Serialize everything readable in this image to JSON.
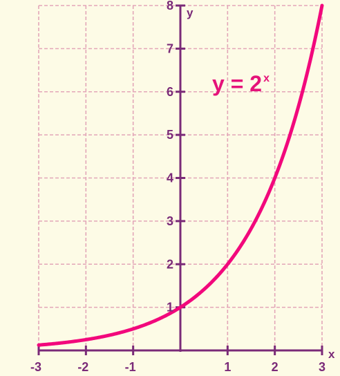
{
  "chart_data": {
    "type": "line",
    "title": "",
    "xlabel": "x",
    "ylabel": "y",
    "xlim": [
      -3,
      3
    ],
    "ylim": [
      0,
      8
    ],
    "grid": true,
    "x_ticks": [
      "-3",
      "-2",
      "-1",
      "1",
      "2",
      "3"
    ],
    "y_ticks": [
      "1",
      "2",
      "3",
      "4",
      "5",
      "6",
      "7",
      "8"
    ],
    "series": [
      {
        "name": "y = 2^x",
        "x": [
          -3,
          -2.5,
          -2,
          -1.5,
          -1,
          -0.5,
          0,
          0.5,
          1,
          1.5,
          2,
          2.5,
          3
        ],
        "y": [
          0.125,
          0.177,
          0.25,
          0.354,
          0.5,
          0.707,
          1,
          1.414,
          2,
          2.828,
          4,
          5.657,
          8
        ]
      }
    ],
    "annotation": {
      "base": "y = 2",
      "exponent": "x"
    },
    "colors": {
      "background": "#fdfbe6",
      "axis": "#7a2a78",
      "grid": "#e3a6b8",
      "curve": "#f2087c",
      "equation": "#e5127a"
    }
  }
}
